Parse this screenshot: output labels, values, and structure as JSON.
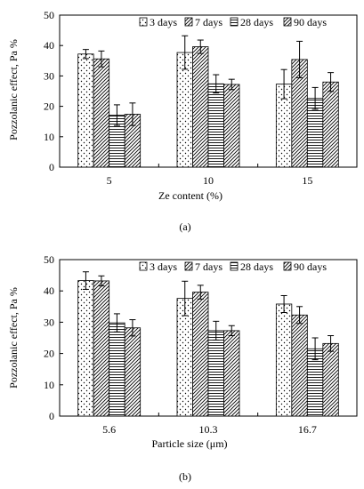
{
  "colors": {
    "bar_fill": "#ffffff",
    "stroke": "#000000",
    "text": "#000000"
  },
  "legend_labels": [
    "3 days",
    "7 days",
    "28 days",
    "90 days"
  ],
  "chart_data": [
    {
      "type": "bar",
      "caption": "(a)",
      "xlabel": "Ze content (%)",
      "ylabel": "Pozzolanic effect, Pa %",
      "ylim": [
        0,
        50
      ],
      "yticks": [
        0,
        10,
        20,
        30,
        40,
        50
      ],
      "categories": [
        "5",
        "10",
        "15"
      ],
      "grid": false,
      "legend": "top-right",
      "series": [
        {
          "name": "3 days",
          "pattern": "dots",
          "values": [
            37.2,
            37.7,
            27.3
          ],
          "errors": [
            1.5,
            5.5,
            4.8
          ]
        },
        {
          "name": "7 days",
          "pattern": "diagonal",
          "values": [
            35.6,
            39.6,
            35.4
          ],
          "errors": [
            2.6,
            2.2,
            6.0
          ]
        },
        {
          "name": "28 days",
          "pattern": "horizontal",
          "values": [
            17.1,
            27.4,
            22.6
          ],
          "errors": [
            3.4,
            3.0,
            3.6
          ]
        },
        {
          "name": "90 days",
          "pattern": "diagonal",
          "values": [
            17.4,
            27.2,
            28.0
          ],
          "errors": [
            3.7,
            1.7,
            3.1
          ]
        }
      ]
    },
    {
      "type": "bar",
      "caption": "(b)",
      "xlabel": "Particle size (μm)",
      "ylabel": "Pozzolanic effect, Pa %",
      "ylim": [
        0,
        50
      ],
      "yticks": [
        0,
        10,
        20,
        30,
        40,
        50
      ],
      "categories": [
        "5.6",
        "10.3",
        "16.7"
      ],
      "grid": false,
      "legend": "top-right",
      "series": [
        {
          "name": "3 days",
          "pattern": "dots",
          "values": [
            43.3,
            37.6,
            35.8
          ],
          "errors": [
            2.8,
            5.5,
            2.7
          ]
        },
        {
          "name": "7 days",
          "pattern": "diagonal",
          "values": [
            43.2,
            39.6,
            32.3
          ],
          "errors": [
            1.6,
            2.2,
            2.7
          ]
        },
        {
          "name": "28 days",
          "pattern": "horizontal",
          "values": [
            29.8,
            27.3,
            21.5
          ],
          "errors": [
            2.9,
            3.0,
            3.5
          ]
        },
        {
          "name": "90 days",
          "pattern": "diagonal",
          "values": [
            28.2,
            27.3,
            23.2
          ],
          "errors": [
            2.6,
            1.6,
            2.5
          ]
        }
      ]
    }
  ]
}
